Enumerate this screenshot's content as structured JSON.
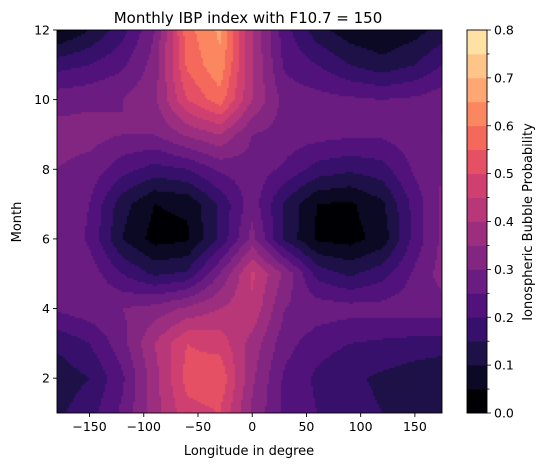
{
  "chart_data": {
    "type": "heatmap",
    "title": "Monthly IBP index with F10.7 = 150",
    "xlabel": "Longitude in degree",
    "ylabel": "Month",
    "colorbar_label": "Ionospheric Bubble Probability",
    "xlim": [
      -180,
      175
    ],
    "ylim": [
      1,
      12
    ],
    "xticks": [
      -150,
      -100,
      -50,
      0,
      50,
      100,
      150
    ],
    "yticks": [
      2,
      4,
      6,
      8,
      10,
      12
    ],
    "colorbar_range": [
      0.0,
      0.8
    ],
    "colorbar_ticks": [
      "0.0",
      "0.1",
      "0.2",
      "0.3",
      "0.4",
      "0.5",
      "0.6",
      "0.7",
      "0.8"
    ],
    "levels": [
      0.0,
      0.05,
      0.1,
      0.15,
      0.2,
      0.25,
      0.3,
      0.35,
      0.4,
      0.45,
      0.5,
      0.55,
      0.6,
      0.65,
      0.7,
      0.75,
      0.8
    ],
    "colormap": "magma",
    "level_colors": [
      "#000004",
      "#0b0924",
      "#1d1147",
      "#36106b",
      "#51127c",
      "#6a1c81",
      "#832681",
      "#9c2e7f",
      "#b73779",
      "#cf4070",
      "#e55064",
      "#f4695c",
      "#fb8761",
      "#fea772",
      "#fec488",
      "#fde2a3"
    ],
    "grid": false,
    "value_grid": {
      "x": [
        -180,
        -150,
        -120,
        -90,
        -60,
        -30,
        0,
        30,
        60,
        90,
        120,
        150,
        175
      ],
      "y": [
        1,
        2,
        3,
        4,
        5,
        6,
        7,
        8,
        9,
        10,
        11,
        12
      ],
      "z": [
        [
          0.14,
          0.18,
          0.26,
          0.38,
          0.48,
          0.5,
          0.34,
          0.24,
          0.2,
          0.17,
          0.15,
          0.13,
          0.12
        ],
        [
          0.12,
          0.15,
          0.24,
          0.38,
          0.52,
          0.54,
          0.36,
          0.24,
          0.19,
          0.16,
          0.14,
          0.12,
          0.1
        ],
        [
          0.16,
          0.2,
          0.28,
          0.4,
          0.5,
          0.48,
          0.38,
          0.27,
          0.22,
          0.2,
          0.19,
          0.18,
          0.18
        ],
        [
          0.26,
          0.28,
          0.3,
          0.32,
          0.36,
          0.4,
          0.44,
          0.3,
          0.28,
          0.27,
          0.27,
          0.28,
          0.28
        ],
        [
          0.3,
          0.28,
          0.2,
          0.14,
          0.16,
          0.3,
          0.46,
          0.34,
          0.18,
          0.14,
          0.18,
          0.26,
          0.32
        ],
        [
          0.3,
          0.24,
          0.1,
          0.03,
          0.04,
          0.16,
          0.32,
          0.14,
          0.04,
          0.03,
          0.07,
          0.22,
          0.31
        ],
        [
          0.3,
          0.25,
          0.12,
          0.05,
          0.06,
          0.16,
          0.28,
          0.14,
          0.05,
          0.04,
          0.09,
          0.22,
          0.31
        ],
        [
          0.3,
          0.28,
          0.22,
          0.18,
          0.2,
          0.26,
          0.28,
          0.24,
          0.18,
          0.16,
          0.18,
          0.26,
          0.3
        ],
        [
          0.32,
          0.32,
          0.3,
          0.3,
          0.36,
          0.4,
          0.3,
          0.28,
          0.27,
          0.26,
          0.26,
          0.28,
          0.3
        ],
        [
          0.28,
          0.29,
          0.3,
          0.34,
          0.5,
          0.58,
          0.4,
          0.28,
          0.27,
          0.26,
          0.25,
          0.26,
          0.28
        ],
        [
          0.18,
          0.2,
          0.24,
          0.32,
          0.56,
          0.64,
          0.4,
          0.24,
          0.2,
          0.15,
          0.12,
          0.15,
          0.2
        ],
        [
          0.04,
          0.1,
          0.18,
          0.3,
          0.58,
          0.66,
          0.4,
          0.22,
          0.12,
          0.07,
          0.05,
          0.08,
          0.12
        ]
      ]
    }
  }
}
